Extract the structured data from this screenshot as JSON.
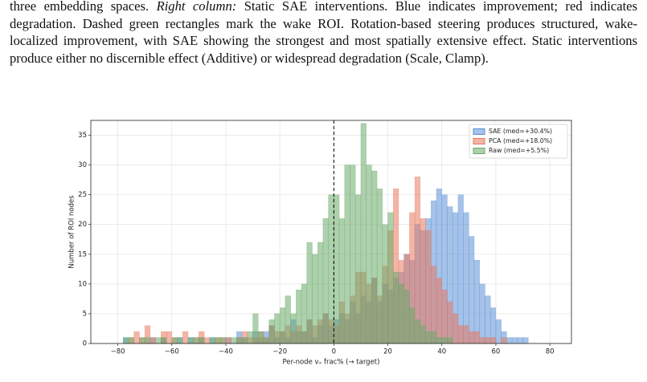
{
  "paragraph": [
    {
      "text": "three embedding spaces. ",
      "italic": false
    },
    {
      "text": "Right column:",
      "italic": true
    },
    {
      "text": " Static SAE interventions. Blue indicates improvement; red indicates degradation. Dashed green rectangles mark the wake ROI. Rotation-based steering produces structured, wake-localized improvement, with SAE showing the strongest and most spatially extensive effect. Static interventions produce either no discernible effect (Additive) or widespread degradation (Scale, Clamp).",
      "italic": false
    }
  ],
  "chart_data": {
    "type": "histogram",
    "xlabel": "Per-node vₓ frac% (→ target)",
    "ylabel": "Number of ROI nodes",
    "bins": [
      -78,
      -76,
      -74,
      -72,
      -70,
      -68,
      -66,
      -64,
      -62,
      -60,
      -58,
      -56,
      -54,
      -52,
      -50,
      -48,
      -46,
      -44,
      -42,
      -40,
      -38,
      -36,
      -34,
      -32,
      -30,
      -28,
      -26,
      -24,
      -22,
      -20,
      -18,
      -16,
      -14,
      -12,
      -10,
      -8,
      -6,
      -4,
      -2,
      0,
      2,
      4,
      6,
      8,
      10,
      12,
      14,
      16,
      18,
      20,
      22,
      24,
      26,
      28,
      30,
      32,
      34,
      36,
      38,
      40,
      42,
      44,
      46,
      48,
      50,
      52,
      54,
      56,
      58,
      60,
      62,
      64,
      66,
      68,
      70,
      72
    ],
    "series": [
      {
        "name": "SAE (med=+30.4%)",
        "color": "#5b8fd6",
        "values": [
          1,
          0,
          0,
          0,
          0,
          1,
          0,
          1,
          0,
          0,
          1,
          0,
          1,
          0,
          1,
          0,
          1,
          0,
          0,
          1,
          0,
          2,
          1,
          0,
          2,
          1,
          2,
          3,
          1,
          2,
          1,
          4,
          2,
          2,
          4,
          1,
          3,
          5,
          3,
          4,
          5,
          4,
          7,
          5,
          8,
          7,
          11,
          7,
          10,
          9,
          11,
          12,
          15,
          14,
          20,
          19,
          21,
          24,
          26,
          25,
          23,
          22,
          25,
          22,
          18,
          14,
          10,
          8,
          6,
          4,
          2,
          1,
          1,
          1,
          1
        ]
      },
      {
        "name": "PCA (med=+18.0%)",
        "color": "#e8795e",
        "values": [
          0,
          1,
          2,
          1,
          3,
          1,
          0,
          2,
          2,
          1,
          0,
          2,
          0,
          1,
          2,
          1,
          0,
          1,
          1,
          1,
          0,
          1,
          2,
          1,
          1,
          2,
          1,
          3,
          2,
          2,
          3,
          2,
          3,
          2,
          4,
          3,
          4,
          5,
          4,
          3,
          7,
          5,
          8,
          12,
          12,
          10,
          11,
          8,
          13,
          19,
          26,
          14,
          15,
          22,
          28,
          21,
          19,
          13,
          11,
          9,
          7,
          5,
          3,
          3,
          2,
          2,
          1,
          1,
          1,
          0,
          1,
          0,
          0,
          0,
          0
        ]
      },
      {
        "name": "Raw (med=+5.5%)",
        "color": "#6aaa6a",
        "values": [
          1,
          1,
          0,
          1,
          1,
          0,
          1,
          1,
          0,
          1,
          1,
          0,
          1,
          1,
          1,
          0,
          1,
          1,
          1,
          0,
          1,
          1,
          1,
          2,
          5,
          2,
          1,
          4,
          5,
          6,
          8,
          5,
          9,
          10,
          17,
          15,
          17,
          21,
          25,
          25,
          21,
          30,
          30,
          25,
          37,
          30,
          29,
          26,
          20,
          22,
          12,
          10,
          9,
          6,
          4,
          3,
          2,
          2,
          1,
          1,
          1,
          0,
          0,
          0,
          0,
          0,
          0,
          0,
          0,
          0,
          0,
          0,
          0,
          0,
          0
        ]
      }
    ],
    "xlim": [
      -90,
      88
    ],
    "ylim": [
      0,
      37.5
    ],
    "xticks": [
      {
        "value": -80,
        "label": "−80"
      },
      {
        "value": -60,
        "label": "−60"
      },
      {
        "value": -40,
        "label": "−40"
      },
      {
        "value": -20,
        "label": "−20"
      },
      0,
      20,
      40,
      60,
      80
    ],
    "yticks": [
      0,
      5,
      10,
      15,
      20,
      25,
      30,
      35
    ],
    "vline": 0,
    "grid": true,
    "legend": "upper right",
    "alpha": 0.55
  }
}
